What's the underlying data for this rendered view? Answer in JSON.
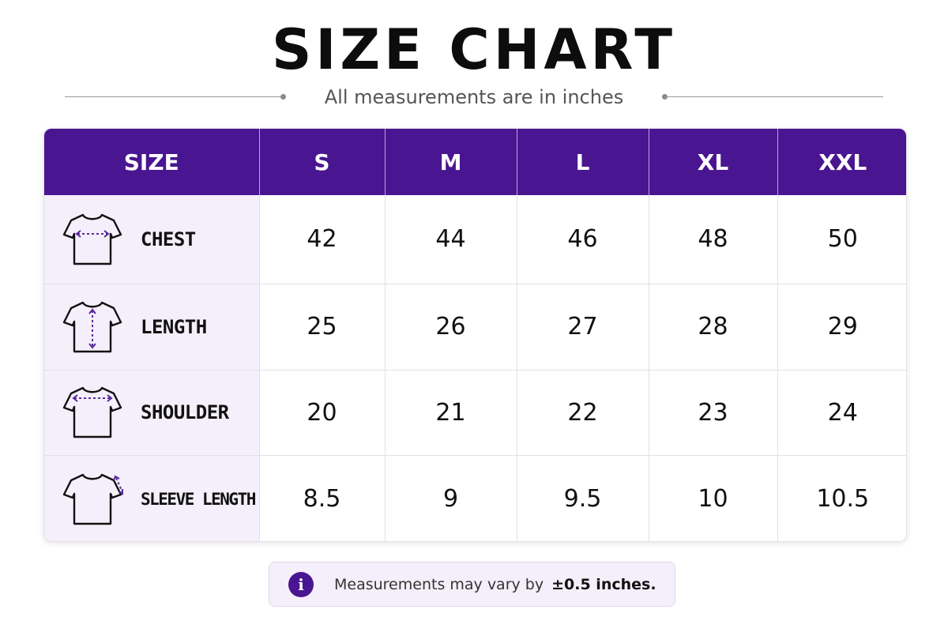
{
  "title": "SIZE CHART",
  "subtitle": "All measurements are in inches",
  "table": {
    "header": [
      "SIZE",
      "S",
      "M",
      "L",
      "XL",
      "XXL"
    ],
    "rows": [
      {
        "label": "CHEST",
        "icon": "chest-shirt-icon",
        "values": [
          "42",
          "44",
          "46",
          "48",
          "50"
        ]
      },
      {
        "label": "LENGTH",
        "icon": "length-shirt-icon",
        "values": [
          "25",
          "26",
          "27",
          "28",
          "29"
        ]
      },
      {
        "label": "SHOULDER",
        "icon": "shoulder-shirt-icon",
        "values": [
          "20",
          "21",
          "22",
          "23",
          "24"
        ]
      },
      {
        "label": "SLEEVE LENGTH",
        "icon": "sleeve-shirt-icon",
        "values": [
          "8.5",
          "9",
          "9.5",
          "10",
          "10.5"
        ]
      }
    ]
  },
  "note": {
    "icon": "info-icon",
    "icon_glyph": "i",
    "text": "Measurements may vary by",
    "emphasis": "±0.5 inches."
  },
  "colors": {
    "header_bg": "#4a1590",
    "label_bg": "#f4effa",
    "accent": "#4a1590"
  }
}
